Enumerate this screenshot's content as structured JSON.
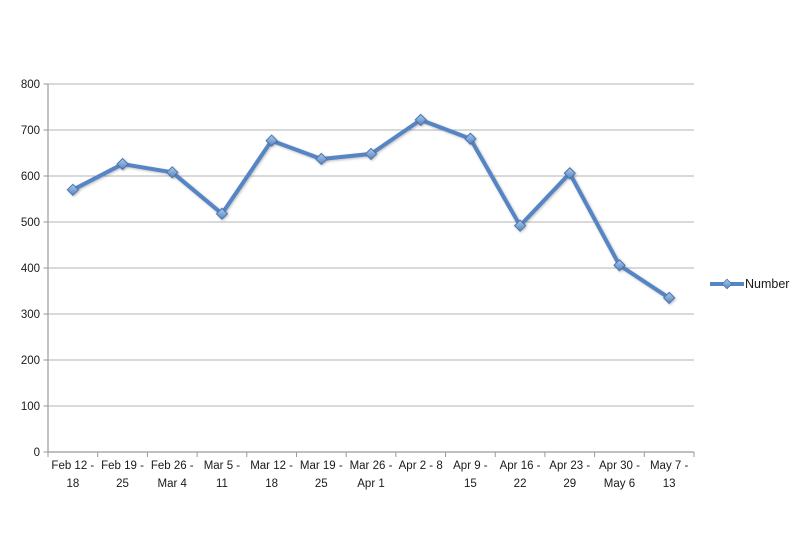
{
  "chart_data": {
    "type": "line",
    "title": "",
    "xlabel": "",
    "ylabel": "",
    "categories": [
      {
        "line1": "Feb 12 -",
        "line2": "18"
      },
      {
        "line1": "Feb 19 -",
        "line2": "25"
      },
      {
        "line1": "Feb 26 -",
        "line2": "Mar 4"
      },
      {
        "line1": "Mar 5 -",
        "line2": "11"
      },
      {
        "line1": "Mar 12 -",
        "line2": "18"
      },
      {
        "line1": "Mar 19 -",
        "line2": "25"
      },
      {
        "line1": "Mar 26 -",
        "line2": "Apr 1"
      },
      {
        "line1": "Apr 2 - 8",
        "line2": ""
      },
      {
        "line1": "Apr 9 -",
        "line2": "15"
      },
      {
        "line1": "Apr 16 -",
        "line2": "22"
      },
      {
        "line1": "Apr 23 -",
        "line2": "29"
      },
      {
        "line1": "Apr 30 -",
        "line2": "May 6"
      },
      {
        "line1": "May 7 -",
        "line2": "13"
      }
    ],
    "series": [
      {
        "name": "Number",
        "values": [
          570,
          626,
          608,
          518,
          677,
          637,
          648,
          722,
          681,
          492,
          606,
          406,
          335
        ]
      }
    ],
    "ylim": [
      0,
      800
    ],
    "yticks": [
      0,
      100,
      200,
      300,
      400,
      500,
      600,
      700,
      800
    ],
    "grid": "horizontal",
    "legend_position": "right",
    "marker": "diamond"
  },
  "colors": {
    "line": "#5585C4",
    "marker_border": "#4677B2",
    "marker_fill_top": "#AFC9E9",
    "marker_fill_bottom": "#5585C4",
    "gridline": "#B3B3B3",
    "axis": "#999999",
    "text": "#1A1A1A",
    "background": "#FFFFFF"
  }
}
